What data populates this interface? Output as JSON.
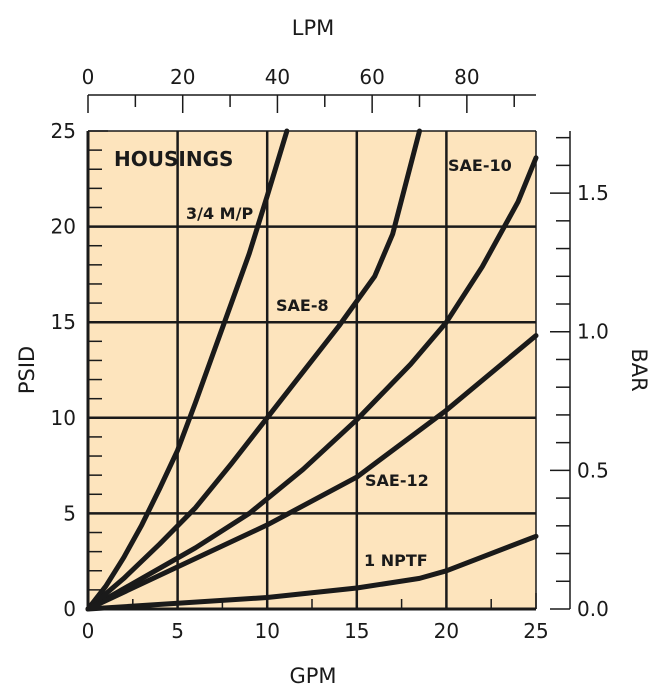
{
  "chart_data": {
    "type": "line",
    "title": "HOUSINGS",
    "xlabel": "GPM",
    "ylabel": "PSID",
    "x2label": "LPM",
    "y2label": "BAR",
    "xlim": [
      0,
      25
    ],
    "ylim": [
      0,
      25
    ],
    "x2lim": [
      0,
      94.6
    ],
    "y2lim": [
      0,
      1.724
    ],
    "x_ticks": [
      "0",
      "5",
      "10",
      "15",
      "20",
      "25"
    ],
    "y_ticks": [
      "0",
      "5",
      "10",
      "15",
      "20",
      "25"
    ],
    "x2_ticks": [
      "0",
      "20",
      "40",
      "60",
      "80"
    ],
    "y2_ticks": [
      "0.0",
      "0.5",
      "1.0",
      "1.5"
    ],
    "grid": true,
    "background": "#fde4bd",
    "line_color": "#1a1a1a",
    "series": [
      {
        "name": "3/4 M/P",
        "x": [
          0,
          1,
          2,
          3,
          4,
          5,
          6,
          7,
          8,
          9,
          10,
          11.1
        ],
        "y": [
          0,
          1.2,
          2.7,
          4.4,
          6.3,
          8.3,
          10.8,
          13.4,
          16.0,
          18.6,
          21.6,
          25
        ]
      },
      {
        "name": "SAE-8",
        "x": [
          0,
          2,
          4,
          6,
          8,
          10,
          12,
          14,
          16,
          17,
          18.5
        ],
        "y": [
          0,
          1.6,
          3.4,
          5.3,
          7.6,
          10.0,
          12.4,
          14.8,
          17.4,
          19.6,
          25
        ]
      },
      {
        "name": "SAE-10",
        "x": [
          0,
          3,
          6,
          9,
          12,
          15,
          18,
          20,
          22,
          24,
          25
        ],
        "y": [
          0,
          1.6,
          3.2,
          5.0,
          7.3,
          9.9,
          12.8,
          15.0,
          17.9,
          21.3,
          23.6
        ]
      },
      {
        "name": "SAE-12",
        "x": [
          0,
          5,
          10,
          15,
          20,
          25
        ],
        "y": [
          0,
          2.2,
          4.4,
          6.9,
          10.4,
          14.3
        ]
      },
      {
        "name": "1 NPTF",
        "x": [
          0,
          5,
          10,
          15,
          18.5,
          20,
          25
        ],
        "y": [
          0,
          0.3,
          0.6,
          1.1,
          1.6,
          2.0,
          3.8
        ]
      }
    ]
  }
}
